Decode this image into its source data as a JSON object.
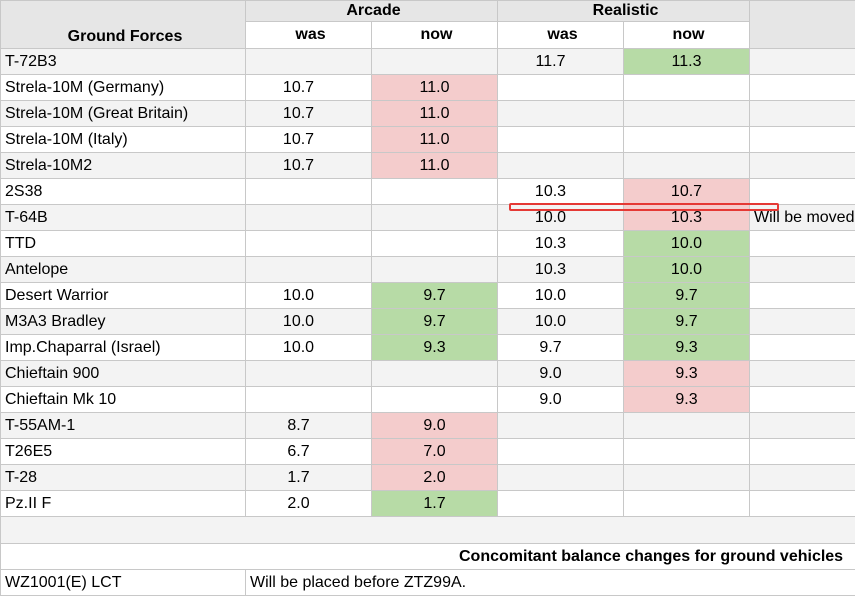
{
  "header": {
    "group": "Ground Forces",
    "arcade": "Arcade",
    "realistic": "Realistic",
    "was": "was",
    "now": "now"
  },
  "rows": [
    {
      "name": "T-72B3",
      "a_was": "",
      "a_now": "",
      "a_status": "",
      "r_was": "11.7",
      "r_now": "11.3",
      "r_status": "down",
      "note": ""
    },
    {
      "name": "Strela-10M (Germany)",
      "a_was": "10.7",
      "a_now": "11.0",
      "a_status": "up",
      "r_was": "",
      "r_now": "",
      "r_status": "",
      "note": ""
    },
    {
      "name": "Strela-10M (Great Britain)",
      "a_was": "10.7",
      "a_now": "11.0",
      "a_status": "up",
      "r_was": "",
      "r_now": "",
      "r_status": "",
      "note": ""
    },
    {
      "name": "Strela-10M (Italy)",
      "a_was": "10.7",
      "a_now": "11.0",
      "a_status": "up",
      "r_was": "",
      "r_now": "",
      "r_status": "",
      "note": ""
    },
    {
      "name": "Strela-10M2",
      "a_was": "10.7",
      "a_now": "11.0",
      "a_status": "up",
      "r_was": "",
      "r_now": "",
      "r_status": "",
      "note": ""
    },
    {
      "name": "2S38",
      "a_was": "",
      "a_now": "",
      "a_status": "",
      "r_was": "10.3",
      "r_now": "10.7",
      "r_status": "up",
      "note": ""
    },
    {
      "name": "T-64B",
      "a_was": "",
      "a_now": "",
      "a_status": "",
      "r_was": "10.0",
      "r_now": "10.3",
      "r_status": "up",
      "note": "Will be moved"
    },
    {
      "name": "TTD",
      "a_was": "",
      "a_now": "",
      "a_status": "",
      "r_was": "10.3",
      "r_now": "10.0",
      "r_status": "down",
      "note": ""
    },
    {
      "name": "Antelope",
      "a_was": "",
      "a_now": "",
      "a_status": "",
      "r_was": "10.3",
      "r_now": "10.0",
      "r_status": "down",
      "note": ""
    },
    {
      "name": "Desert Warrior",
      "a_was": "10.0",
      "a_now": "9.7",
      "a_status": "down",
      "r_was": "10.0",
      "r_now": "9.7",
      "r_status": "down",
      "note": ""
    },
    {
      "name": "M3A3 Bradley",
      "a_was": "10.0",
      "a_now": "9.7",
      "a_status": "down",
      "r_was": "10.0",
      "r_now": "9.7",
      "r_status": "down",
      "note": ""
    },
    {
      "name": "Imp.Chaparral (Israel)",
      "a_was": "10.0",
      "a_now": "9.3",
      "a_status": "down",
      "r_was": "9.7",
      "r_now": "9.3",
      "r_status": "down",
      "note": ""
    },
    {
      "name": "Chieftain 900",
      "a_was": "",
      "a_now": "",
      "a_status": "",
      "r_was": "9.0",
      "r_now": "9.3",
      "r_status": "up",
      "note": ""
    },
    {
      "name": "Chieftain Mk 10",
      "a_was": "",
      "a_now": "",
      "a_status": "",
      "r_was": "9.0",
      "r_now": "9.3",
      "r_status": "up",
      "note": ""
    },
    {
      "name": "T-55AM-1",
      "a_was": "8.7",
      "a_now": "9.0",
      "a_status": "up",
      "r_was": "",
      "r_now": "",
      "r_status": "",
      "note": ""
    },
    {
      "name": "T26E5",
      "a_was": "6.7",
      "a_now": "7.0",
      "a_status": "up",
      "r_was": "",
      "r_now": "",
      "r_status": "",
      "note": ""
    },
    {
      "name": "T-28",
      "a_was": "1.7",
      "a_now": "2.0",
      "a_status": "up",
      "r_was": "",
      "r_now": "",
      "r_status": "",
      "note": ""
    },
    {
      "name": "Pz.II F",
      "a_was": "2.0",
      "a_now": "1.7",
      "a_status": "down",
      "r_was": "",
      "r_now": "",
      "r_status": "",
      "note": ""
    }
  ],
  "section": {
    "title": "Concomitant balance changes for ground vehicles",
    "rows": [
      {
        "name": "WZ1001(E) LCT",
        "note": "Will be placed before ZTZ99A."
      }
    ]
  },
  "colors": {
    "increase": "#f4cccc",
    "decrease": "#b7dba6",
    "annotation": "#e53935"
  }
}
